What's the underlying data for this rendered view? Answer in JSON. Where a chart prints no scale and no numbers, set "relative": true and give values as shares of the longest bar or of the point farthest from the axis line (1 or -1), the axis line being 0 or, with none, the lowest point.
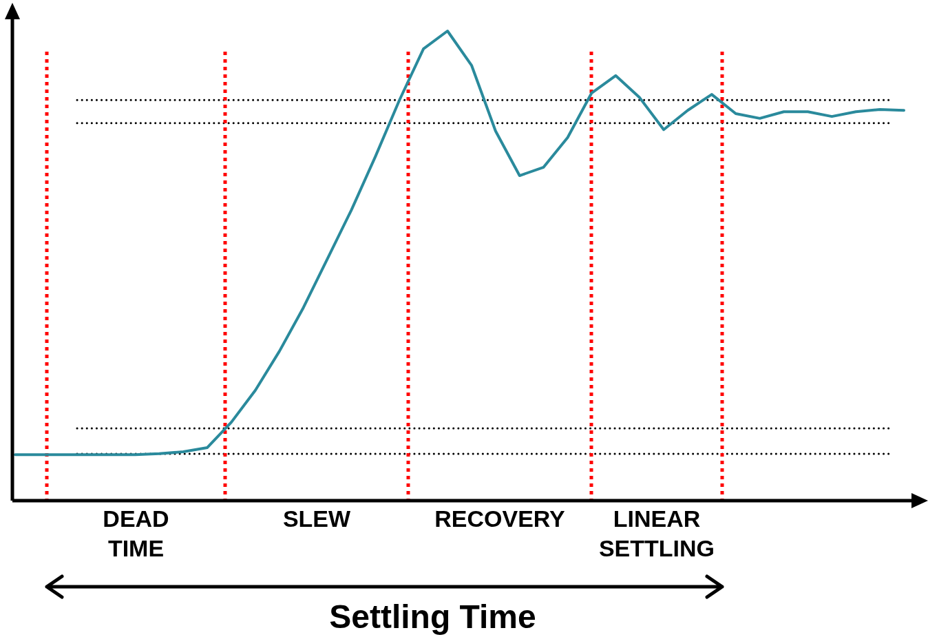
{
  "chart_data": {
    "type": "line",
    "relative": true,
    "line_style": "solid",
    "categories": [
      null,
      null,
      null,
      null,
      null,
      null,
      null,
      null,
      null,
      null,
      null,
      null,
      null,
      null,
      null,
      null,
      null,
      null,
      null,
      null,
      null,
      null,
      null,
      null,
      null,
      null,
      null,
      null,
      null,
      null,
      null,
      null,
      null,
      null,
      null,
      null,
      null,
      null
    ],
    "series": [
      {
        "color": "#2a8a9c",
        "values": [
          0.098,
          0.098,
          0.098,
          0.098,
          0.098,
          0.098,
          0.1,
          0.104,
          0.113,
          0.167,
          0.235,
          0.318,
          0.411,
          0.515,
          0.619,
          0.733,
          0.853,
          0.962,
          1,
          0.927,
          0.787,
          0.692,
          0.71,
          0.773,
          0.868,
          0.905,
          0.858,
          0.79,
          0.831,
          0.865,
          0.824,
          0.814,
          0.828,
          0.828,
          0.818,
          0.828,
          0.833,
          0.831
        ]
      }
    ],
    "ref_lines": [
      {
        "axis": "y",
        "value": 0.853,
        "color": "#000000",
        "line_style": "dotted"
      },
      {
        "axis": "y",
        "value": 0.804,
        "color": "#000000",
        "line_style": "dotted"
      },
      {
        "axis": "y",
        "value": 0.154,
        "color": "#000000",
        "line_style": "dotted"
      },
      {
        "axis": "y",
        "value": 0.0997,
        "color": "#000000",
        "line_style": "dotted"
      }
    ],
    "annotations": [
      "DEAD\nTIME",
      "SLEW",
      "RECOVERY",
      "LINEAR\nSETTLING",
      "Settling Time"
    ]
  }
}
